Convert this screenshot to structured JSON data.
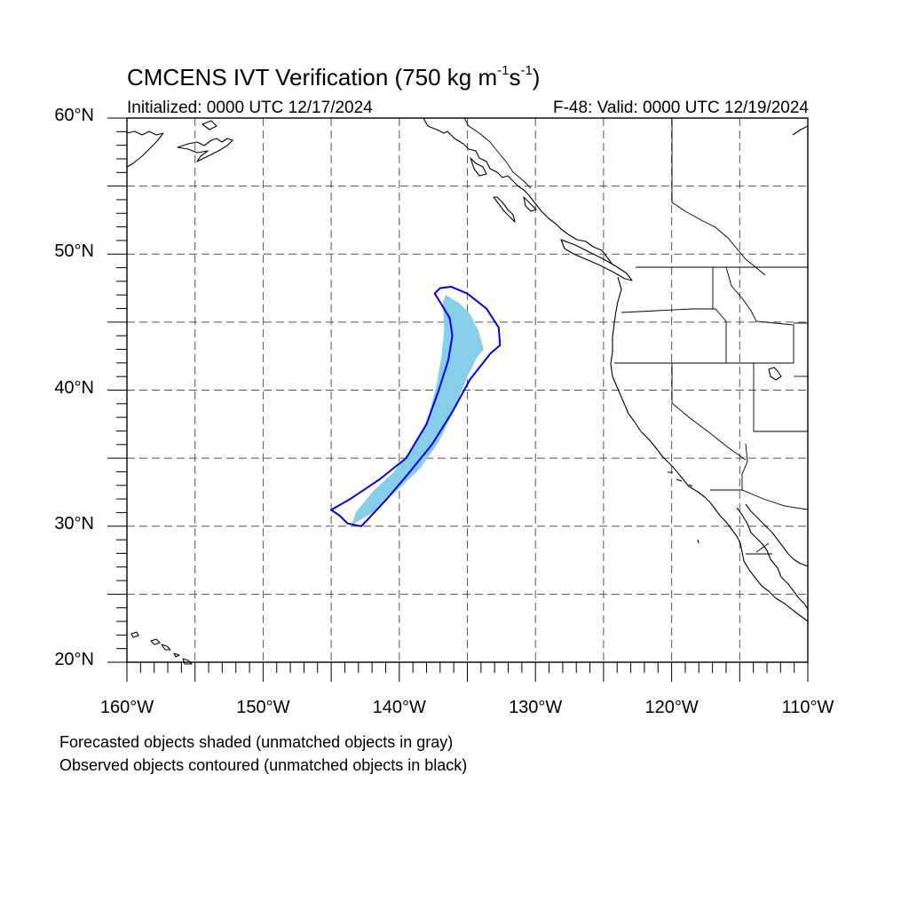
{
  "title": {
    "main": "CMCENS IVT Verification (750 kg m",
    "exp1": "-1",
    "mid": "s",
    "exp2": "-1",
    "end": ")"
  },
  "initialized": "Initialized: 0000 UTC 12/17/2024",
  "valid": "F-48: Valid: 0000 UTC 12/19/2024",
  "axes": {
    "lat_labels": [
      "60°N",
      "50°N",
      "40°N",
      "30°N",
      "20°N"
    ],
    "lon_labels": [
      "160°W",
      "150°W",
      "140°W",
      "130°W",
      "120°W",
      "110°W"
    ],
    "lat_range": [
      20,
      60
    ],
    "lon_range": [
      -160,
      -110
    ],
    "grid": "dashed every 5 degrees"
  },
  "legend": {
    "forecast": "Forecasted objects shaded (unmatched objects in gray)",
    "observed": "Observed objects contoured (unmatched objects in black)"
  },
  "colors": {
    "forecast_fill": "#87ceeb",
    "observed_contour": "#0000ee",
    "coastline": "#000000",
    "grid": "#555555"
  },
  "objects": {
    "forecast_shaded": {
      "matched": true,
      "outline": [
        [
          -136.6,
          47.0
        ],
        [
          -135.6,
          46.4
        ],
        [
          -134.8,
          45.6
        ],
        [
          -134.2,
          44.4
        ],
        [
          -133.8,
          43.0
        ],
        [
          -134.3,
          42.4
        ],
        [
          -135.0,
          41.0
        ],
        [
          -136.0,
          38.5
        ],
        [
          -137.1,
          36.2
        ],
        [
          -138.5,
          34.2
        ],
        [
          -140.3,
          32.5
        ],
        [
          -142.1,
          30.9
        ],
        [
          -143.5,
          30.1
        ],
        [
          -143.2,
          31.0
        ],
        [
          -141.9,
          32.6
        ],
        [
          -140.4,
          34.0
        ],
        [
          -139.3,
          35.4
        ],
        [
          -138.4,
          36.7
        ],
        [
          -137.8,
          38.3
        ],
        [
          -137.3,
          40.2
        ],
        [
          -136.9,
          42.5
        ],
        [
          -136.7,
          44.5
        ],
        [
          -136.8,
          46.4
        ]
      ]
    },
    "observed_contour": {
      "matched": true,
      "outline": [
        [
          -137.0,
          47.5
        ],
        [
          -136.2,
          47.6
        ],
        [
          -135.0,
          47.1
        ],
        [
          -133.6,
          46.0
        ],
        [
          -132.7,
          44.6
        ],
        [
          -132.6,
          43.3
        ],
        [
          -133.3,
          42.7
        ],
        [
          -134.8,
          40.8
        ],
        [
          -136.1,
          38.4
        ],
        [
          -137.6,
          36.0
        ],
        [
          -139.3,
          33.9
        ],
        [
          -141.0,
          31.9
        ],
        [
          -142.4,
          30.4
        ],
        [
          -142.8,
          30.0
        ],
        [
          -143.8,
          30.2
        ],
        [
          -144.4,
          30.8
        ],
        [
          -145.0,
          31.2
        ],
        [
          -143.6,
          32.0
        ],
        [
          -141.5,
          33.4
        ],
        [
          -139.5,
          35.0
        ],
        [
          -138.0,
          37.5
        ],
        [
          -137.1,
          40.0
        ],
        [
          -136.4,
          42.2
        ],
        [
          -136.1,
          44.0
        ],
        [
          -136.3,
          45.3
        ],
        [
          -136.9,
          46.3
        ],
        [
          -137.4,
          47.1
        ]
      ]
    }
  }
}
